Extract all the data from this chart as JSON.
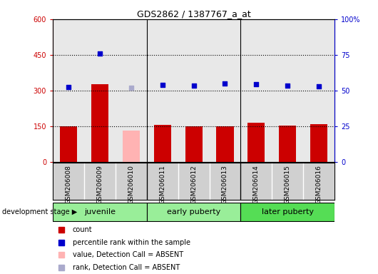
{
  "title": "GDS2862 / 1387767_a_at",
  "samples": [
    "GSM206008",
    "GSM206009",
    "GSM206010",
    "GSM206011",
    "GSM206012",
    "GSM206013",
    "GSM206014",
    "GSM206015",
    "GSM206016"
  ],
  "bar_values": [
    150,
    325,
    130,
    155,
    148,
    150,
    163,
    152,
    158
  ],
  "bar_colors": [
    "#cc0000",
    "#cc0000",
    "#ffb3b3",
    "#cc0000",
    "#cc0000",
    "#cc0000",
    "#cc0000",
    "#cc0000",
    "#cc0000"
  ],
  "rank_values": [
    52.5,
    75.8,
    51.7,
    53.8,
    53.3,
    54.7,
    54.5,
    53.3,
    52.7
  ],
  "rank_colors": [
    "#0000cc",
    "#0000cc",
    "#aaaacc",
    "#0000cc",
    "#0000cc",
    "#0000cc",
    "#0000cc",
    "#0000cc",
    "#0000cc"
  ],
  "ylim_left": [
    0,
    600
  ],
  "ylim_right": [
    0,
    100
  ],
  "yticks_left": [
    0,
    150,
    300,
    450,
    600
  ],
  "ytick_labels_left": [
    "0",
    "150",
    "300",
    "450",
    "600"
  ],
  "yticks_right": [
    0,
    25,
    50,
    75,
    100
  ],
  "ytick_labels_right": [
    "0",
    "25",
    "50",
    "75",
    "100%"
  ],
  "hlines_pct": [
    25,
    50,
    75
  ],
  "groups": [
    {
      "label": "juvenile",
      "start": 0,
      "end": 2,
      "color": "#99ee99"
    },
    {
      "label": "early puberty",
      "start": 3,
      "end": 5,
      "color": "#99ee99"
    },
    {
      "label": "later puberty",
      "start": 6,
      "end": 8,
      "color": "#55dd55"
    }
  ],
  "bar_width": 0.55,
  "background_color": "#ffffff",
  "plot_bg_color": "#e8e8e8",
  "label_bg_color": "#d0d0d0"
}
